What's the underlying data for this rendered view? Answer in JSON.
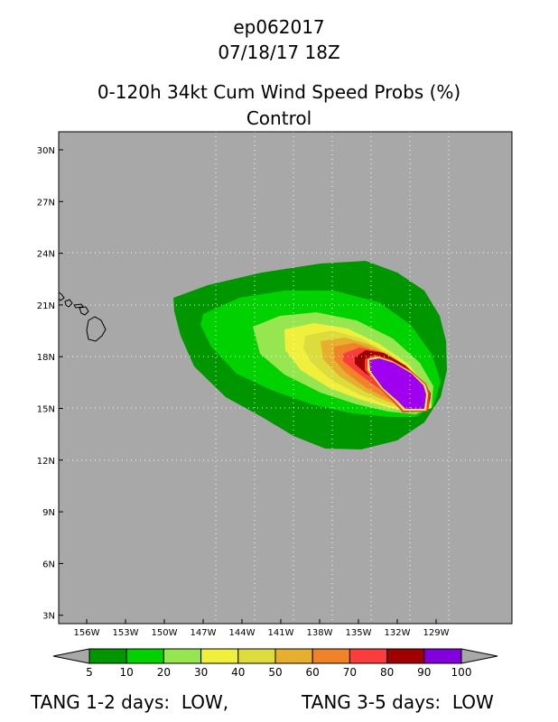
{
  "header": {
    "storm_id": "ep062017",
    "datetime": "07/18/17 18Z",
    "product": "0-120h 34kt Cum Wind Speed Probs (%)",
    "member": "Control"
  },
  "map": {
    "lat_labels": [
      "30N",
      "27N",
      "24N",
      "21N",
      "18N",
      "15N",
      "12N",
      "9N",
      "6N",
      "3N"
    ],
    "lon_labels": [
      "156W",
      "153W",
      "150W",
      "147W",
      "144W",
      "141W",
      "138W",
      "135W",
      "132W",
      "129W"
    ],
    "background_color": "#a8a8a8",
    "land_feature": "Hawaiian Islands outline"
  },
  "legend": {
    "ticks": [
      "5",
      "10",
      "20",
      "30",
      "40",
      "50",
      "60",
      "70",
      "80",
      "90",
      "100"
    ],
    "colors": [
      "#009600",
      "#00d200",
      "#96e650",
      "#f0f03c",
      "#dcdc3c",
      "#e6af2d",
      "#f08228",
      "#fa3c3c",
      "#a00000",
      "#8200dc"
    ]
  },
  "footer": {
    "left": "TANG 1-2 days:  LOW,",
    "right": "TANG 3-5 days:  LOW"
  },
  "colors": {
    "c5": "#009600",
    "c10": "#00d200",
    "c20": "#96e650",
    "c30": "#f0f03c",
    "c40": "#dcdc3c",
    "c50": "#e6af2d",
    "c60": "#f08228",
    "c70": "#fa3c3c",
    "c80": "#a00000",
    "c90": "#8200dc",
    "c100": "#a000f0"
  }
}
